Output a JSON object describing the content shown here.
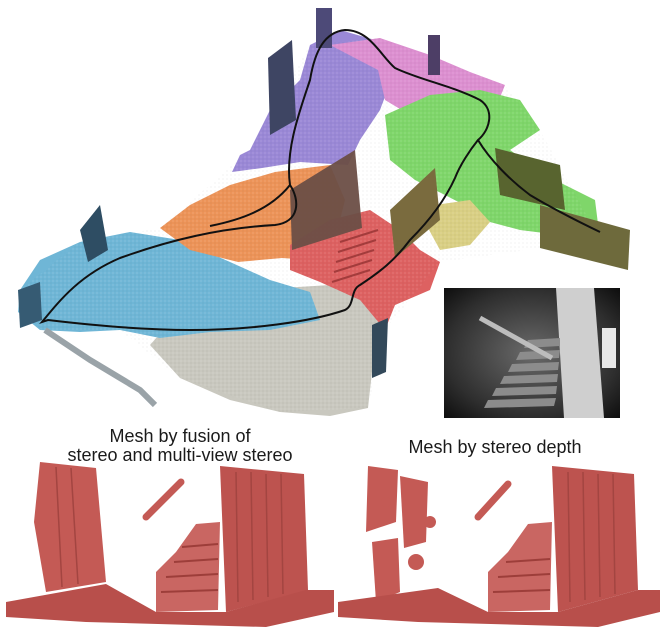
{
  "captions": {
    "fusion_line1": "Mesh by fusion of",
    "fusion_line2": "stereo and multi-view stereo",
    "stereo": "Mesh by stereo depth"
  },
  "colors": {
    "blue_region": "#6fb6d6",
    "orange_region": "#ec9358",
    "purple_region": "#9a88d6",
    "pink_region": "#dc8fd0",
    "green_region": "#7fd66a",
    "red_region": "#dd6161",
    "gray_region": "#c9c8bf",
    "olive_wall": "#6e6a3c",
    "trajectory": "#111111",
    "mesh": "#c45a55"
  },
  "icons": {
    "scene": "colored-point-cloud-map",
    "inset": "fisheye-staircase-photo",
    "mesh": "reconstructed-mesh"
  }
}
